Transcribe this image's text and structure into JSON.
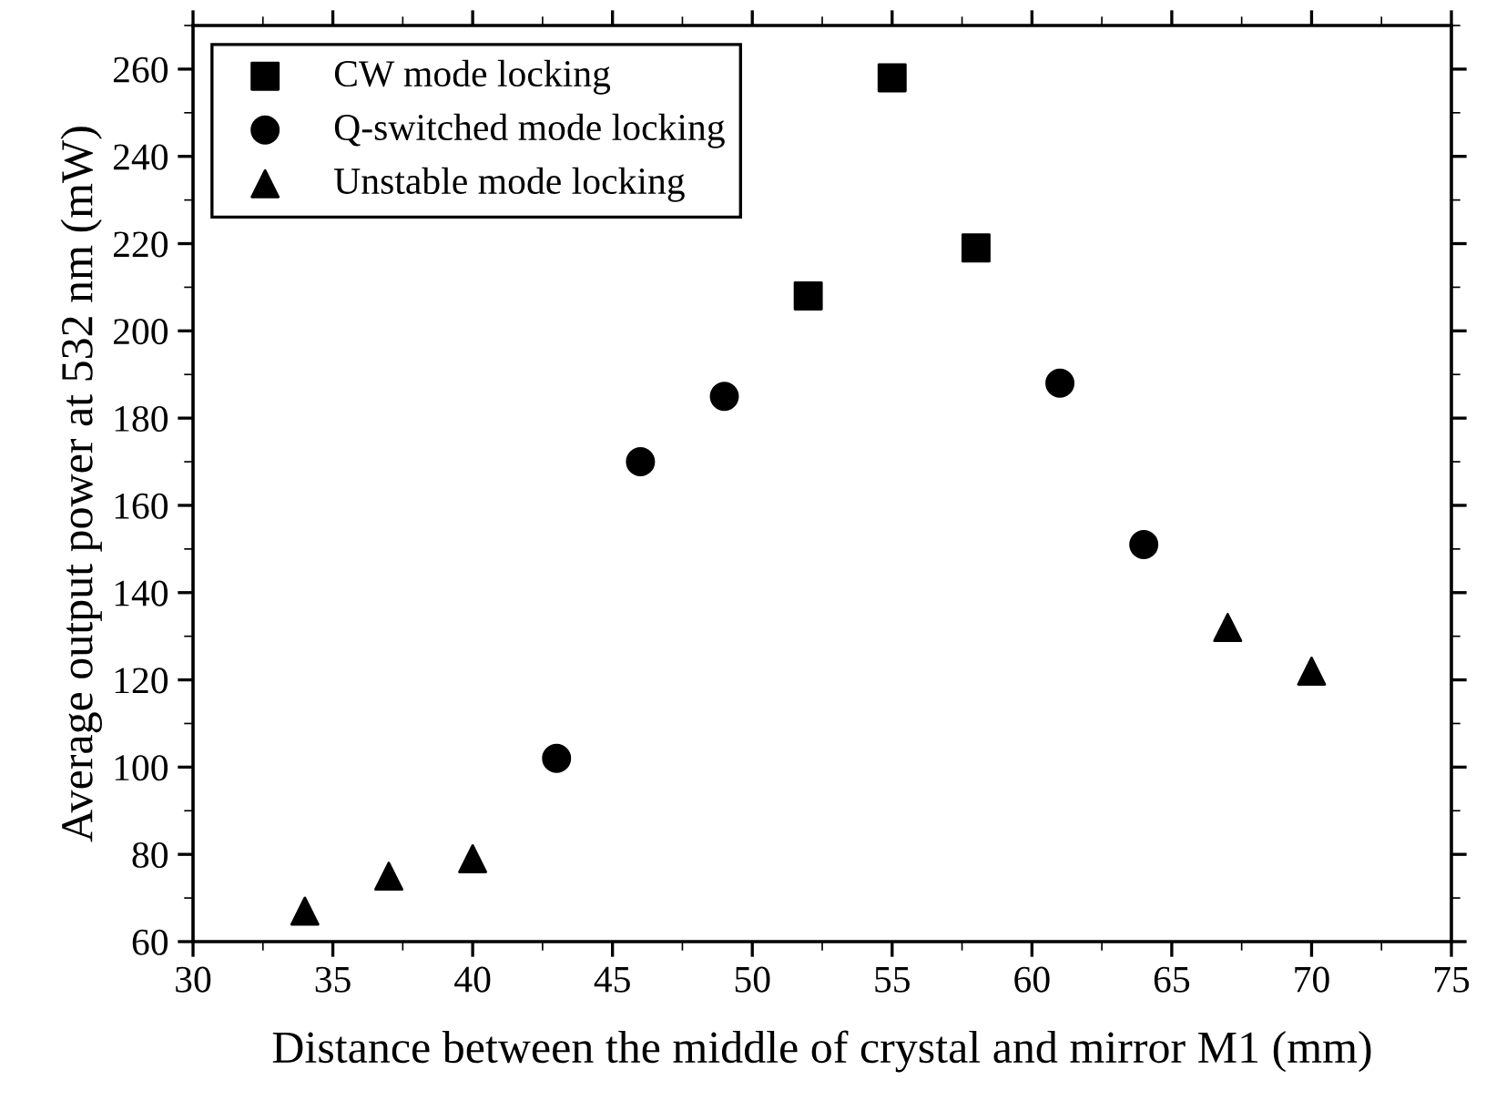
{
  "chart_data": {
    "type": "scatter",
    "xlabel": "Distance between the middle of crystal and mirror M1 (mm)",
    "ylabel": "Average output power at 532 nm (mW)",
    "series": [
      {
        "name": "CW mode locking",
        "color": "#000000",
        "marker": "square",
        "x": [
          52,
          55,
          58
        ],
        "values": [
          208,
          258,
          219
        ]
      },
      {
        "name": "Q-switched mode locking",
        "color": "#000000",
        "marker": "circle",
        "x": [
          43,
          46,
          49,
          61,
          64
        ],
        "values": [
          102,
          170,
          185,
          188,
          151
        ]
      },
      {
        "name": "Unstable mode locking",
        "color": "#000000",
        "marker": "triangle",
        "x": [
          34,
          37,
          40,
          67,
          70
        ],
        "values": [
          67,
          75,
          79,
          132,
          122
        ]
      }
    ],
    "xlim": [
      30,
      75
    ],
    "xticks": [
      30,
      35,
      40,
      45,
      50,
      55,
      60,
      65,
      70,
      75
    ],
    "ylim": [
      60,
      270
    ],
    "yticks": [
      60,
      80,
      100,
      120,
      140,
      160,
      180,
      200,
      220,
      240,
      260
    ],
    "grid": false,
    "legend": "top left"
  }
}
